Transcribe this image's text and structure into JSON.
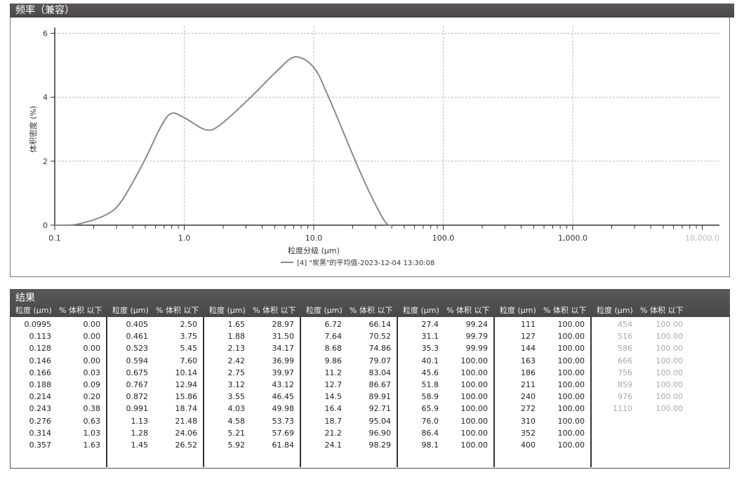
{
  "chart_panel": {
    "title": "频率（兼容）"
  },
  "results_panel": {
    "title": "结果"
  },
  "table": {
    "size_header": "粒度 (μm)",
    "pct_header": "% 体积 以下",
    "groups": [
      [
        [
          "0.0995",
          "0.00"
        ],
        [
          "0.113",
          "0.00"
        ],
        [
          "0.128",
          "0.00"
        ],
        [
          "0.146",
          "0.00"
        ],
        [
          "0.166",
          "0.03"
        ],
        [
          "0.188",
          "0.09"
        ],
        [
          "0.214",
          "0.20"
        ],
        [
          "0.243",
          "0.38"
        ],
        [
          "0.276",
          "0.63"
        ],
        [
          "0.314",
          "1.03"
        ],
        [
          "0.357",
          "1.63"
        ]
      ],
      [
        [
          "0.405",
          "2.50"
        ],
        [
          "0.461",
          "3.75"
        ],
        [
          "0.523",
          "5.45"
        ],
        [
          "0.594",
          "7.60"
        ],
        [
          "0.675",
          "10.14"
        ],
        [
          "0.767",
          "12.94"
        ],
        [
          "0.872",
          "15.86"
        ],
        [
          "0.991",
          "18.74"
        ],
        [
          "1.13",
          "21.48"
        ],
        [
          "1.28",
          "24.06"
        ],
        [
          "1.45",
          "26.52"
        ]
      ],
      [
        [
          "1.65",
          "28.97"
        ],
        [
          "1.88",
          "31.50"
        ],
        [
          "2.13",
          "34.17"
        ],
        [
          "2.42",
          "36.99"
        ],
        [
          "2.75",
          "39.97"
        ],
        [
          "3.12",
          "43.12"
        ],
        [
          "3.55",
          "46.45"
        ],
        [
          "4.03",
          "49.98"
        ],
        [
          "4.58",
          "53.73"
        ],
        [
          "5.21",
          "57.69"
        ],
        [
          "5.92",
          "61.84"
        ]
      ],
      [
        [
          "6.72",
          "66.14"
        ],
        [
          "7.64",
          "70.52"
        ],
        [
          "8.68",
          "74.86"
        ],
        [
          "9.86",
          "79.07"
        ],
        [
          "11.2",
          "83.04"
        ],
        [
          "12.7",
          "86.67"
        ],
        [
          "14.5",
          "89.91"
        ],
        [
          "16.4",
          "92.71"
        ],
        [
          "18.7",
          "95.04"
        ],
        [
          "21.2",
          "96.90"
        ],
        [
          "24.1",
          "98.29"
        ]
      ],
      [
        [
          "27.4",
          "99.24"
        ],
        [
          "31.1",
          "99.79"
        ],
        [
          "35.3",
          "99.99"
        ],
        [
          "40.1",
          "100.00"
        ],
        [
          "45.6",
          "100.00"
        ],
        [
          "51.8",
          "100.00"
        ],
        [
          "58.9",
          "100.00"
        ],
        [
          "65.9",
          "100.00"
        ],
        [
          "76.0",
          "100.00"
        ],
        [
          "86.4",
          "100.00"
        ],
        [
          "98.1",
          "100.00"
        ]
      ],
      [
        [
          "111",
          "100.00"
        ],
        [
          "127",
          "100.00"
        ],
        [
          "144",
          "100.00"
        ],
        [
          "163",
          "100.00"
        ],
        [
          "186",
          "100.00"
        ],
        [
          "211",
          "100.00"
        ],
        [
          "240",
          "100.00"
        ],
        [
          "272",
          "100.00"
        ],
        [
          "310",
          "100.00"
        ],
        [
          "352",
          "100.00"
        ],
        [
          "400",
          "100.00"
        ]
      ],
      [
        [
          "454",
          "100.00"
        ],
        [
          "516",
          "100.00"
        ],
        [
          "586",
          "100.00"
        ],
        [
          "666",
          "100.00"
        ],
        [
          "756",
          "100.00"
        ],
        [
          "859",
          "100.00"
        ],
        [
          "976",
          "100.00"
        ],
        [
          "1110",
          "100.00"
        ]
      ]
    ]
  },
  "chart_data": {
    "type": "line",
    "xlabel": "粒度分级 (μm)",
    "ylabel": "体积密度 (%)",
    "x_scale": "log",
    "xlim": [
      0.1,
      10000
    ],
    "ylim": [
      0,
      6
    ],
    "x_ticks": [
      "0.1",
      "1.0",
      "10.0",
      "100.0",
      "1,000.0",
      "10,000.0"
    ],
    "y_ticks": [
      "0",
      "2",
      "4",
      "6"
    ],
    "grid": true,
    "legend_position": "bottom",
    "line_color": "#8a8a8a",
    "series": [
      {
        "name": "[4] \"炭黑\"的平均值-2023-12-04 13:30:08",
        "x": [
          0.1,
          0.15,
          0.25,
          0.33,
          0.49,
          0.65,
          0.79,
          1.0,
          1.47,
          1.9,
          3.15,
          5.2,
          7.2,
          10,
          13,
          21,
          27.5,
          35.5,
          40
        ],
        "y": [
          0,
          0.03,
          0.33,
          0.77,
          2.0,
          3.03,
          3.49,
          3.36,
          2.98,
          3.14,
          3.94,
          4.82,
          5.26,
          4.93,
          4.01,
          2.0,
          0.95,
          0.11,
          0
        ]
      }
    ]
  }
}
